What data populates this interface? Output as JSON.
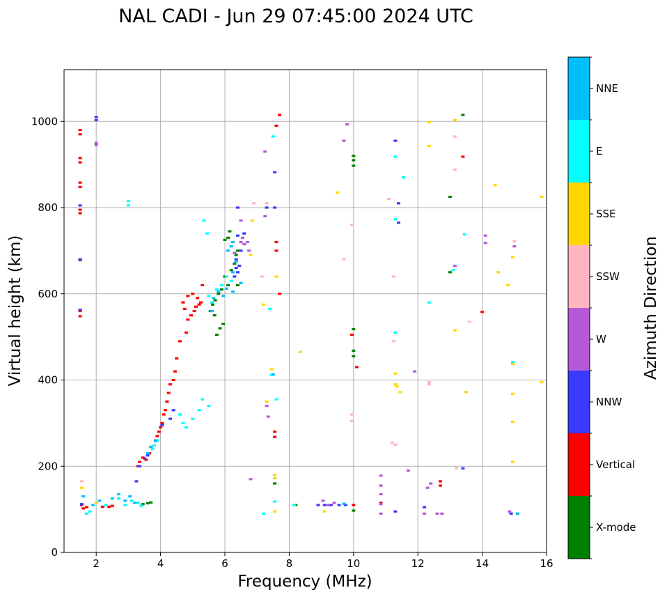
{
  "chart_data": {
    "type": "scatter",
    "title": "NAL CADI - Jun 29 07:45:00 2024 UTC",
    "xlabel": "Frequency (MHz)",
    "ylabel": "Virtual height (km)",
    "xlim": [
      1,
      16
    ],
    "ylim": [
      0,
      1120
    ],
    "xticks": [
      2,
      4,
      6,
      8,
      10,
      12,
      14,
      16
    ],
    "yticks": [
      0,
      200,
      400,
      600,
      800,
      1000
    ],
    "grid": true,
    "colorbar": {
      "label": "Azimuth Direction",
      "categories": [
        {
          "name": "X-mode",
          "color": "#008000"
        },
        {
          "name": "Vertical",
          "color": "#ff0000"
        },
        {
          "name": "NNW",
          "color": "#3a3aff"
        },
        {
          "name": "W",
          "color": "#b45ad8"
        },
        {
          "name": "SSW",
          "color": "#ffb6c1"
        },
        {
          "name": "SSE",
          "color": "#ffd700"
        },
        {
          "name": "E",
          "color": "#00ffff"
        },
        {
          "name": "NNE",
          "color": "#00bfff"
        }
      ]
    },
    "series": [
      {
        "name": "X-mode",
        "points": [
          [
            3.45,
            112
          ],
          [
            3.6,
            114
          ],
          [
            3.7,
            116
          ],
          [
            5.55,
            560
          ],
          [
            5.62,
            575
          ],
          [
            5.7,
            585
          ],
          [
            5.8,
            600
          ],
          [
            5.68,
            550
          ],
          [
            5.9,
            610
          ],
          [
            6.1,
            620
          ],
          [
            6.0,
            640
          ],
          [
            6.2,
            655
          ],
          [
            6.3,
            670
          ],
          [
            6.35,
            690
          ],
          [
            6.4,
            700
          ],
          [
            6.1,
            730
          ],
          [
            6.15,
            745
          ],
          [
            6.0,
            725
          ],
          [
            5.95,
            530
          ],
          [
            5.85,
            520
          ],
          [
            5.75,
            505
          ],
          [
            6.4,
            620
          ],
          [
            7.55,
            160
          ],
          [
            8.2,
            110
          ],
          [
            10.0,
            920
          ],
          [
            10.0,
            910
          ],
          [
            10.0,
            897
          ],
          [
            10.0,
            518
          ],
          [
            10.0,
            468
          ],
          [
            10.0,
            455
          ],
          [
            10.0,
            97
          ],
          [
            13.0,
            825
          ],
          [
            13.0,
            650
          ],
          [
            13.4,
            1015
          ]
        ]
      },
      {
        "name": "Vertical",
        "points": [
          [
            1.5,
            980
          ],
          [
            1.5,
            970
          ],
          [
            1.5,
            915
          ],
          [
            1.5,
            905
          ],
          [
            1.5,
            858
          ],
          [
            1.5,
            848
          ],
          [
            1.5,
            795
          ],
          [
            1.5,
            787
          ],
          [
            1.5,
            678
          ],
          [
            1.5,
            560
          ],
          [
            1.5,
            548
          ],
          [
            1.55,
            110
          ],
          [
            1.6,
            102
          ],
          [
            1.7,
            105
          ],
          [
            2.2,
            106
          ],
          [
            2.4,
            106
          ],
          [
            2.5,
            108
          ],
          [
            3.3,
            200
          ],
          [
            3.35,
            210
          ],
          [
            3.45,
            220
          ],
          [
            3.55,
            215
          ],
          [
            3.65,
            230
          ],
          [
            3.75,
            240
          ],
          [
            3.85,
            260
          ],
          [
            3.9,
            270
          ],
          [
            3.95,
            280
          ],
          [
            4.0,
            290
          ],
          [
            4.05,
            300
          ],
          [
            4.1,
            320
          ],
          [
            4.15,
            330
          ],
          [
            4.2,
            350
          ],
          [
            4.25,
            370
          ],
          [
            4.3,
            390
          ],
          [
            4.4,
            400
          ],
          [
            4.45,
            420
          ],
          [
            4.5,
            450
          ],
          [
            4.6,
            490
          ],
          [
            4.8,
            510
          ],
          [
            4.85,
            540
          ],
          [
            4.95,
            550
          ],
          [
            5.05,
            560
          ],
          [
            5.1,
            570
          ],
          [
            5.15,
            590
          ],
          [
            5.0,
            600
          ],
          [
            5.25,
            580
          ],
          [
            4.7,
            580
          ],
          [
            4.75,
            565
          ],
          [
            4.85,
            595
          ],
          [
            5.3,
            620
          ],
          [
            5.2,
            575
          ],
          [
            7.6,
            990
          ],
          [
            7.7,
            1015
          ],
          [
            7.6,
            720
          ],
          [
            7.6,
            700
          ],
          [
            7.7,
            600
          ],
          [
            7.55,
            280
          ],
          [
            7.55,
            268
          ],
          [
            9.95,
            505
          ],
          [
            10.1,
            430
          ],
          [
            10.0,
            110
          ],
          [
            10.85,
            115
          ],
          [
            12.7,
            165
          ],
          [
            12.7,
            155
          ],
          [
            13.4,
            918
          ],
          [
            14.0,
            558
          ]
        ]
      },
      {
        "name": "NNW",
        "points": [
          [
            1.5,
            805
          ],
          [
            1.5,
            680
          ],
          [
            1.5,
            563
          ],
          [
            1.55,
            112
          ],
          [
            2.0,
            1010
          ],
          [
            2.0,
            1003
          ],
          [
            3.25,
            165
          ],
          [
            3.35,
            200
          ],
          [
            3.5,
            218
          ],
          [
            3.6,
            225
          ],
          [
            4.05,
            295
          ],
          [
            4.3,
            310
          ],
          [
            4.4,
            330
          ],
          [
            6.35,
            660
          ],
          [
            6.4,
            650
          ],
          [
            6.45,
            665
          ],
          [
            6.35,
            680
          ],
          [
            6.3,
            640
          ],
          [
            6.5,
            700
          ],
          [
            6.4,
            735
          ],
          [
            6.6,
            740
          ],
          [
            6.4,
            800
          ],
          [
            7.55,
            882
          ],
          [
            7.55,
            800
          ],
          [
            7.3,
            800
          ],
          [
            8.9,
            110
          ],
          [
            9.1,
            110
          ],
          [
            9.3,
            110
          ],
          [
            9.55,
            110
          ],
          [
            9.75,
            110
          ],
          [
            11.3,
            955
          ],
          [
            11.3,
            95
          ],
          [
            11.4,
            810
          ],
          [
            11.4,
            765
          ],
          [
            12.2,
            105
          ],
          [
            13.4,
            195
          ],
          [
            14.9,
            90
          ],
          [
            15.1,
            90
          ]
        ]
      },
      {
        "name": "W",
        "points": [
          [
            2.0,
            950
          ],
          [
            2.0,
            945
          ],
          [
            6.5,
            770
          ],
          [
            6.5,
            720
          ],
          [
            6.55,
            730
          ],
          [
            6.6,
            715
          ],
          [
            6.7,
            720
          ],
          [
            6.75,
            700
          ],
          [
            6.3,
            695
          ],
          [
            7.25,
            930
          ],
          [
            7.25,
            780
          ],
          [
            6.8,
            170
          ],
          [
            7.3,
            340
          ],
          [
            7.35,
            315
          ],
          [
            9.05,
            120
          ],
          [
            9.2,
            110
          ],
          [
            9.4,
            115
          ],
          [
            9.8,
            993
          ],
          [
            9.7,
            955
          ],
          [
            10.85,
            178
          ],
          [
            10.85,
            155
          ],
          [
            10.85,
            135
          ],
          [
            10.85,
            112
          ],
          [
            10.85,
            90
          ],
          [
            11.7,
            190
          ],
          [
            11.9,
            420
          ],
          [
            12.2,
            90
          ],
          [
            12.3,
            150
          ],
          [
            12.4,
            160
          ],
          [
            12.6,
            90
          ],
          [
            12.75,
            90
          ],
          [
            13.15,
            665
          ],
          [
            14.1,
            735
          ],
          [
            14.1,
            718
          ],
          [
            14.85,
            95
          ],
          [
            15.0,
            710
          ]
        ]
      },
      {
        "name": "SSW",
        "points": [
          [
            1.55,
            165
          ],
          [
            6.9,
            810
          ],
          [
            7.15,
            640
          ],
          [
            7.3,
            810
          ],
          [
            9.7,
            680
          ],
          [
            9.95,
            760
          ],
          [
            9.95,
            320
          ],
          [
            9.95,
            305
          ],
          [
            11.1,
            820
          ],
          [
            11.25,
            640
          ],
          [
            11.25,
            490
          ],
          [
            11.2,
            255
          ],
          [
            11.3,
            250
          ],
          [
            12.35,
            395
          ],
          [
            12.35,
            390
          ],
          [
            13.15,
            965
          ],
          [
            13.15,
            888
          ],
          [
            13.2,
            195
          ],
          [
            13.6,
            535
          ],
          [
            15.0,
            722
          ]
        ]
      },
      {
        "name": "SSE",
        "points": [
          [
            1.55,
            150
          ],
          [
            2.0,
            115
          ],
          [
            6.85,
            770
          ],
          [
            6.8,
            690
          ],
          [
            7.2,
            575
          ],
          [
            7.3,
            350
          ],
          [
            7.45,
            425
          ],
          [
            7.55,
            180
          ],
          [
            7.55,
            172
          ],
          [
            7.6,
            640
          ],
          [
            7.55,
            95
          ],
          [
            8.35,
            465
          ],
          [
            9.1,
            95
          ],
          [
            9.5,
            835
          ],
          [
            11.3,
            415
          ],
          [
            11.3,
            390
          ],
          [
            11.35,
            385
          ],
          [
            11.45,
            372
          ],
          [
            12.35,
            943
          ],
          [
            12.35,
            998
          ],
          [
            13.15,
            1003
          ],
          [
            13.15,
            515
          ],
          [
            13.5,
            372
          ],
          [
            14.4,
            852
          ],
          [
            14.5,
            650
          ],
          [
            14.8,
            620
          ],
          [
            14.95,
            685
          ],
          [
            14.95,
            440
          ],
          [
            14.95,
            437
          ],
          [
            14.95,
            368
          ],
          [
            14.95,
            303
          ],
          [
            14.95,
            210
          ],
          [
            15.85,
            825
          ],
          [
            15.85,
            395
          ]
        ]
      },
      {
        "name": "E",
        "points": [
          [
            3.0,
            815
          ],
          [
            3.0,
            805
          ],
          [
            1.7,
            90
          ],
          [
            1.8,
            95
          ],
          [
            2.3,
            110
          ],
          [
            2.7,
            125
          ],
          [
            2.9,
            110
          ],
          [
            3.1,
            120
          ],
          [
            3.3,
            115
          ],
          [
            3.4,
            108
          ],
          [
            3.75,
            240
          ],
          [
            3.8,
            248
          ],
          [
            3.9,
            260
          ],
          [
            4.6,
            320
          ],
          [
            4.7,
            300
          ],
          [
            4.8,
            290
          ],
          [
            5.0,
            310
          ],
          [
            5.2,
            330
          ],
          [
            5.3,
            355
          ],
          [
            5.5,
            340
          ],
          [
            5.35,
            770
          ],
          [
            5.45,
            740
          ],
          [
            5.75,
            610
          ],
          [
            5.9,
            620
          ],
          [
            6.05,
            640
          ],
          [
            6.2,
            630
          ],
          [
            5.6,
            580
          ],
          [
            5.5,
            595
          ],
          [
            7.5,
            965
          ],
          [
            7.4,
            565
          ],
          [
            7.45,
            412
          ],
          [
            7.55,
            118
          ],
          [
            7.2,
            90
          ],
          [
            7.6,
            355
          ],
          [
            8.15,
            110
          ],
          [
            11.3,
            918
          ],
          [
            11.3,
            510
          ],
          [
            11.55,
            870
          ],
          [
            11.3,
            773
          ],
          [
            12.35,
            580
          ],
          [
            13.45,
            738
          ],
          [
            13.1,
            655
          ],
          [
            14.95,
            442
          ]
        ]
      },
      {
        "name": "NNE",
        "points": [
          [
            1.6,
            130
          ],
          [
            1.9,
            110
          ],
          [
            2.1,
            120
          ],
          [
            2.5,
            125
          ],
          [
            2.7,
            135
          ],
          [
            2.9,
            120
          ],
          [
            3.05,
            130
          ],
          [
            3.2,
            115
          ],
          [
            3.6,
            230
          ],
          [
            3.7,
            245
          ],
          [
            3.85,
            258
          ],
          [
            5.65,
            590
          ],
          [
            5.8,
            605
          ],
          [
            5.95,
            595
          ],
          [
            6.05,
            612
          ],
          [
            6.25,
            650
          ],
          [
            6.35,
            675
          ],
          [
            6.5,
            625
          ],
          [
            6.25,
            605
          ],
          [
            5.6,
            560
          ],
          [
            6.1,
            700
          ],
          [
            6.2,
            710
          ],
          [
            6.25,
            720
          ],
          [
            7.5,
            413
          ],
          [
            9.7,
            113
          ],
          [
            15.1,
            90
          ]
        ]
      }
    ]
  }
}
